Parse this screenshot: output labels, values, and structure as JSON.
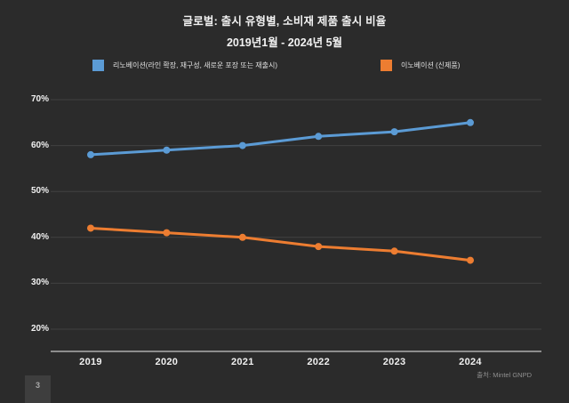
{
  "slide": {
    "title": "글로벌: 출시 유형별, 소비재 제품 출시 비율",
    "subtitle": "2019년1월 - 2024년 5월",
    "source": "출처: Mintel GNPD",
    "page_number": "3"
  },
  "colors": {
    "background": "#2b2b2b",
    "renovation_blue": "#5B9BD5",
    "innovation_orange": "#ED7D31",
    "gridline": "#424242",
    "axis_line": "#c8c8c8",
    "tick_text": "#f0f0f0",
    "source_text": "#8f8f8f"
  },
  "chart_data": {
    "type": "line",
    "title": "글로벌: 출시 유형별, 소비재 제품 출시 비율",
    "subtitle": "2019년1월 - 2024년 5월",
    "categories": [
      "2019",
      "2020",
      "2021",
      "2022",
      "2023",
      "2024"
    ],
    "series": [
      {
        "name": "리노베이션(라인 확장, 재구성, 새로운 포장 또는 재출시)",
        "color": "#5B9BD5",
        "values": [
          58,
          59,
          60,
          62,
          63,
          65
        ]
      },
      {
        "name": "이노베이션 (신제품)",
        "color": "#ED7D31",
        "values": [
          42,
          41,
          40,
          38,
          37,
          35
        ]
      }
    ],
    "ylabel": "",
    "xlabel": "",
    "ylim": [
      20,
      70
    ],
    "yticks": [
      70,
      60,
      50,
      40,
      30,
      20
    ],
    "ytick_suffix": "%",
    "grid": "horizontal",
    "legend_position": "top",
    "markers": true
  }
}
